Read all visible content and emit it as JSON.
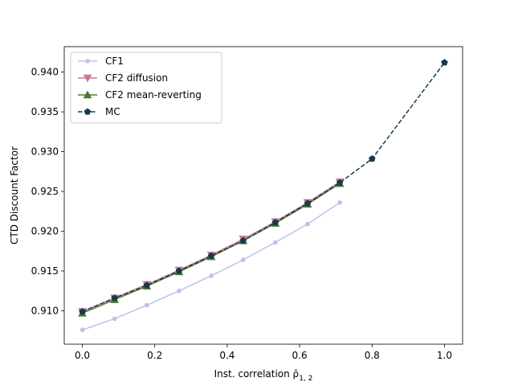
{
  "chart_data": {
    "type": "line",
    "title": "",
    "xlabel": "Inst. correlation ρ̄",
    "xlabel_sub": "1, 2",
    "ylabel": "CTD Discount Factor",
    "xlim": [
      -0.05,
      1.05
    ],
    "ylim": [
      0.9058,
      0.9432
    ],
    "x_ticks": [
      0.0,
      0.2,
      0.4,
      0.6,
      0.8,
      1.0
    ],
    "x_tick_labels": [
      "0.0",
      "0.2",
      "0.4",
      "0.6",
      "0.8",
      "1.0"
    ],
    "y_ticks": [
      0.91,
      0.915,
      0.92,
      0.925,
      0.93,
      0.935,
      0.94
    ],
    "y_tick_labels": [
      "0.910",
      "0.915",
      "0.920",
      "0.925",
      "0.930",
      "0.935",
      "0.940"
    ],
    "grid": false,
    "legend_position": "top-left",
    "series": [
      {
        "name": "CF1",
        "color": "#b9c3ea",
        "marker": "circle",
        "line_style": "solid",
        "x": [
          0.0,
          0.089,
          0.178,
          0.267,
          0.356,
          0.444,
          0.533,
          0.622,
          0.711
        ],
        "y": [
          0.9076,
          0.909,
          0.9107,
          0.9125,
          0.9144,
          0.9164,
          0.9186,
          0.9209,
          0.9236
        ]
      },
      {
        "name": "CF2 diffusion",
        "color": "#cc7898",
        "marker": "triangle-down",
        "line_style": "solid",
        "x": [
          0.0,
          0.089,
          0.178,
          0.267,
          0.356,
          0.444,
          0.533,
          0.622,
          0.711
        ],
        "y": [
          0.9099,
          0.9116,
          0.9133,
          0.9151,
          0.917,
          0.919,
          0.9212,
          0.9236,
          0.9262
        ]
      },
      {
        "name": "CF2 mean-reverting",
        "color": "#4d7a2e",
        "marker": "triangle-up",
        "line_style": "solid",
        "x": [
          0.0,
          0.089,
          0.178,
          0.267,
          0.356,
          0.444,
          0.533,
          0.622,
          0.711
        ],
        "y": [
          0.9097,
          0.9114,
          0.9131,
          0.9149,
          0.9168,
          0.9188,
          0.921,
          0.9234,
          0.926
        ]
      },
      {
        "name": "MC",
        "color": "#173a4a",
        "marker": "pentagon",
        "line_style": "dashed",
        "x": [
          0.0,
          0.089,
          0.178,
          0.267,
          0.356,
          0.444,
          0.533,
          0.622,
          0.711,
          0.8,
          1.0
        ],
        "y": [
          0.9099,
          0.9116,
          0.9132,
          0.915,
          0.9169,
          0.9188,
          0.9211,
          0.9235,
          0.9261,
          0.9291,
          0.9412
        ]
      }
    ]
  }
}
